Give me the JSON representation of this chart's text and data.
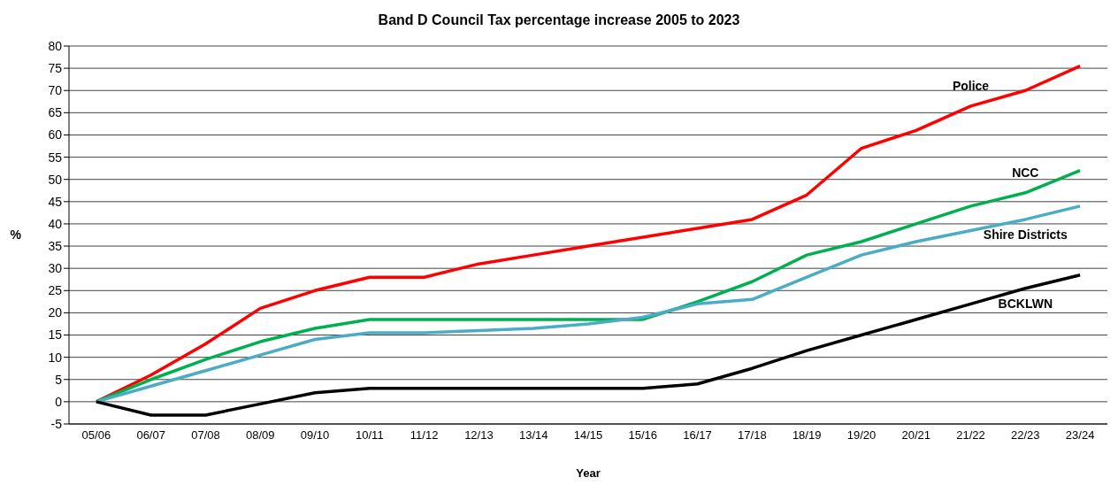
{
  "chart_data": {
    "type": "line",
    "title": "Band D Council Tax percentage increase 2005 to 2023",
    "xlabel": "Year",
    "ylabel": "%",
    "categories": [
      "05/06",
      "06/07",
      "07/08",
      "08/09",
      "09/10",
      "10/11",
      "11/12",
      "12/13",
      "13/14",
      "14/15",
      "15/16",
      "16/17",
      "17/18",
      "18/19",
      "19/20",
      "20/21",
      "21/22",
      "22/23",
      "23/24"
    ],
    "series": [
      {
        "name": "Police",
        "color": "#ff0000",
        "values": [
          0,
          6,
          13,
          21,
          25,
          28,
          28,
          31,
          33,
          35,
          37,
          39,
          41,
          46.5,
          57,
          61,
          66.5,
          70,
          75.5
        ]
      },
      {
        "name": "NCC",
        "color": "#00b050",
        "values": [
          0,
          5,
          9.5,
          13.5,
          16.5,
          18.5,
          18.5,
          18.5,
          18.5,
          18.5,
          18.5,
          22.5,
          27,
          33,
          36,
          40,
          44,
          47,
          52
        ]
      },
      {
        "name": "Shire Districts",
        "color": "#4bacc6",
        "values": [
          0,
          3.5,
          7,
          10.5,
          14,
          15.5,
          15.5,
          16,
          16.5,
          17.5,
          19,
          22,
          23,
          28,
          33,
          36,
          38.5,
          41,
          44
        ]
      },
      {
        "name": "BCKLWN",
        "color": "#000000",
        "values": [
          0,
          -3,
          -3,
          -0.5,
          2,
          3,
          3,
          3,
          3,
          3,
          3,
          4,
          7.5,
          11.5,
          15,
          18.5,
          22,
          25.5,
          28.5
        ]
      }
    ],
    "ylim": [
      -5,
      80
    ],
    "yticks": [
      -5,
      0,
      5,
      10,
      15,
      20,
      25,
      30,
      35,
      40,
      45,
      50,
      55,
      60,
      65,
      70,
      75,
      80
    ],
    "grid": "y",
    "legend": false,
    "marker": "none",
    "line_style": "solid"
  }
}
